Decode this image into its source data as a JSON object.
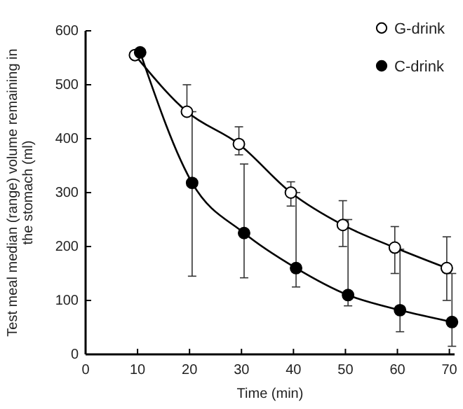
{
  "chart_data": {
    "type": "line",
    "xlabel": "Time (min)",
    "ylabel": "Test meal median (range) volume remaining in the stomach (ml)",
    "xlim": [
      0,
      71
    ],
    "xticks": [
      0,
      10,
      20,
      30,
      40,
      50,
      60,
      70
    ],
    "ylim": [
      0,
      600
    ],
    "yticks": [
      0,
      100,
      200,
      300,
      400,
      500,
      600
    ],
    "grid": false,
    "legend": "top right",
    "marker": "circle",
    "line_style": "solid",
    "series": [
      {
        "name": "G-drink",
        "color": "#ffffff",
        "x": [
          9.5,
          19.5,
          29.5,
          39.5,
          49.5,
          59.5,
          69.5
        ],
        "values": [
          555,
          450,
          390,
          300,
          240,
          198,
          160
        ],
        "errors": [
          null,
          [
            445,
            500
          ],
          [
            370,
            422
          ],
          [
            275,
            320
          ],
          [
            200,
            285
          ],
          [
            150,
            237
          ],
          [
            100,
            218
          ]
        ]
      },
      {
        "name": "C-drink",
        "color": "#000000",
        "x": [
          10.5,
          20.5,
          30.5,
          40.5,
          50.5,
          60.5,
          70.5
        ],
        "values": [
          560,
          318,
          225,
          160,
          110,
          82,
          60
        ],
        "errors": [
          null,
          [
            145,
            450
          ],
          [
            142,
            353
          ],
          [
            125,
            300
          ],
          [
            90,
            250
          ],
          [
            42,
            195
          ],
          [
            15,
            150
          ]
        ]
      }
    ]
  }
}
